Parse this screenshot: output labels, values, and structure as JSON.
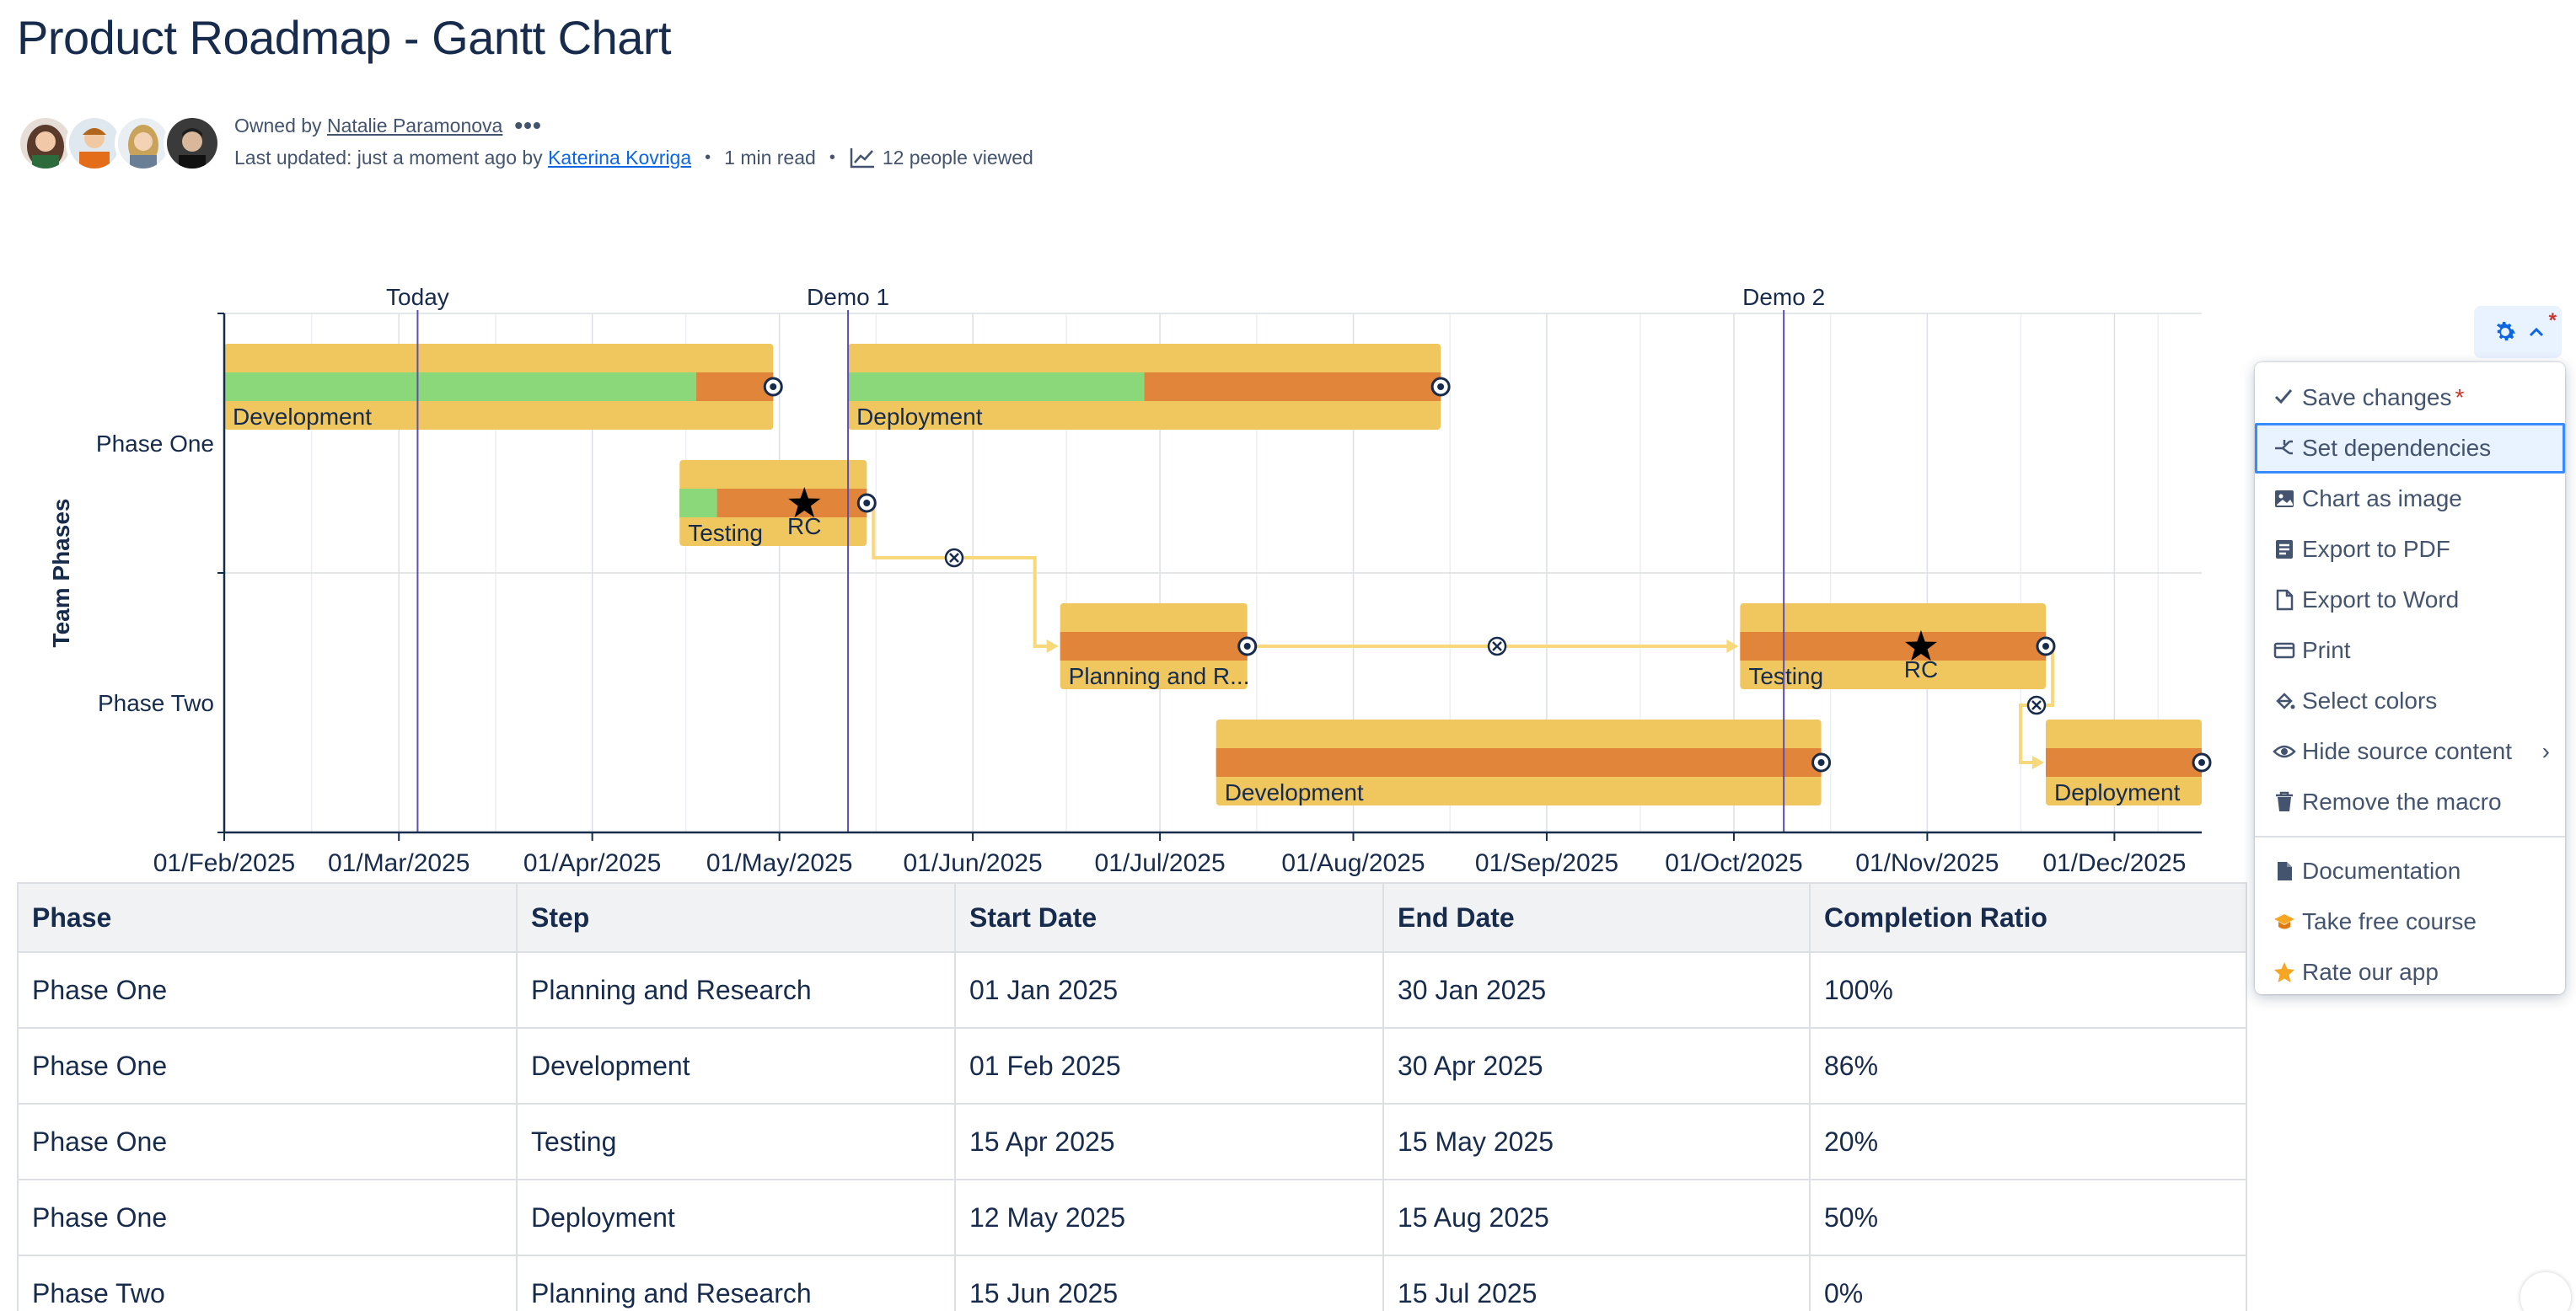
{
  "page": {
    "title": "Product Roadmap - Gantt Chart"
  },
  "byline": {
    "owned_prefix": "Owned by ",
    "owner": "Natalie Paramonova",
    "more": "•••",
    "updated_prefix": "Last updated: just a moment ago by ",
    "updater": "Katerina Kovriga",
    "read_time": "1 min read",
    "views": "12 people viewed",
    "avatars": [
      "avatar-1",
      "avatar-2",
      "avatar-3",
      "avatar-4"
    ]
  },
  "chart_data": {
    "type": "gantt",
    "ylabel": "Team Phases",
    "categories": [
      "Phase One",
      "Phase Two"
    ],
    "x_ticks": [
      "01/Feb/2025",
      "01/Mar/2025",
      "01/Apr/2025",
      "01/May/2025",
      "01/Jun/2025",
      "01/Jul/2025",
      "01/Aug/2025",
      "01/Sep/2025",
      "01/Oct/2025",
      "01/Nov/2025",
      "01/Dec/2025"
    ],
    "xlim": [
      "2025-02-01",
      "2025-12-15"
    ],
    "grid": true,
    "milestones_lines": [
      {
        "label": "Today",
        "date": "2025-03-04"
      },
      {
        "label": "Demo 1",
        "date": "2025-05-12"
      },
      {
        "label": "Demo 2",
        "date": "2025-10-09"
      }
    ],
    "tasks": [
      {
        "phase": "Phase One",
        "label": "Development",
        "start": "2025-02-01",
        "end": "2025-04-30",
        "completion": 0.86,
        "lane": 0
      },
      {
        "phase": "Phase One",
        "label": "Deployment",
        "start": "2025-05-12",
        "end": "2025-08-15",
        "completion": 0.5,
        "lane": 0
      },
      {
        "phase": "Phase One",
        "label": "Testing",
        "start": "2025-04-15",
        "end": "2025-05-15",
        "completion": 0.2,
        "lane": 1,
        "milestone": {
          "label": "RC",
          "date": "2025-05-05"
        }
      },
      {
        "phase": "Phase Two",
        "label": "Planning and R...",
        "start": "2025-06-15",
        "end": "2025-07-15",
        "completion": 0,
        "lane": 0
      },
      {
        "phase": "Phase Two",
        "label": "Testing",
        "start": "2025-10-02",
        "end": "2025-11-20",
        "completion": 0,
        "lane": 0,
        "milestone": {
          "label": "RC",
          "date": "2025-10-31"
        }
      },
      {
        "phase": "Phase Two",
        "label": "Development",
        "start": "2025-07-10",
        "end": "2025-10-15",
        "completion": 0,
        "lane": 1
      },
      {
        "phase": "Phase Two",
        "label": "Deployment",
        "start": "2025-11-20",
        "end": "2025-12-15",
        "completion": 0,
        "lane": 1
      }
    ],
    "dependencies": [
      {
        "from": 2,
        "to": 3
      },
      {
        "from": 3,
        "to": 4
      },
      {
        "from": 4,
        "to": 6
      }
    ],
    "colors": {
      "outer": "#f0c75e",
      "remaining": "#e0853a",
      "done": "#8bd87a",
      "today_line": "#5e4db2",
      "dependency": "#f7d87a",
      "grid": "#dcdfe4"
    }
  },
  "table": {
    "headers": [
      "Phase",
      "Step",
      "Start Date",
      "End Date",
      "Completion Ratio"
    ],
    "rows": [
      [
        "Phase One",
        "Planning and Research",
        "01 Jan 2025",
        "30 Jan 2025",
        "100%"
      ],
      [
        "Phase One",
        "Development",
        "01 Feb 2025",
        "30 Apr 2025",
        "86%"
      ],
      [
        "Phase One",
        "Testing",
        "15 Apr 2025",
        "15 May 2025",
        "20%"
      ],
      [
        "Phase One",
        "Deployment",
        "12 May 2025",
        "15 Aug 2025",
        "50%"
      ],
      [
        "Phase Two",
        "Planning and Research",
        "15 Jun 2025",
        "15 Jul 2025",
        "0%"
      ]
    ]
  },
  "macro": {
    "gear_icon": "gear-icon",
    "asterisk": "*",
    "menu": [
      {
        "label": "Save changes",
        "icon": "check-icon",
        "required": "*"
      },
      {
        "label": "Set dependencies",
        "icon": "dependencies-icon",
        "selected": true
      },
      {
        "label": "Chart as image",
        "icon": "image-icon"
      },
      {
        "label": "Export to PDF",
        "icon": "pdf-icon"
      },
      {
        "label": "Export to Word",
        "icon": "word-icon"
      },
      {
        "label": "Print",
        "icon": "print-icon"
      },
      {
        "label": "Select colors",
        "icon": "paint-icon"
      },
      {
        "label": "Hide source content",
        "icon": "eye-icon",
        "chevron": "›"
      },
      {
        "label": "Remove the macro",
        "icon": "trash-icon"
      },
      {
        "label": "Documentation",
        "icon": "document-icon"
      },
      {
        "label": "Take free course",
        "icon": "graduation-cap-icon"
      },
      {
        "label": "Rate our app",
        "icon": "star-icon"
      }
    ]
  }
}
